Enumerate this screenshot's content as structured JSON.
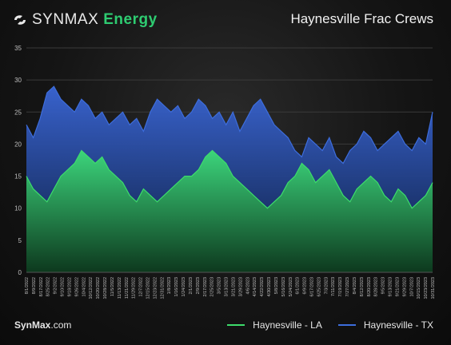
{
  "header": {
    "logo_text": "SYNMAX",
    "logo_brand": "Energy",
    "title": "Haynesville Frac Crews"
  },
  "footer": {
    "site_bold": "SynMax",
    "site_rest": ".com"
  },
  "colors": {
    "la": "#3ddc6b",
    "tx": "#3d6ddc",
    "grid": "#3a3a3a",
    "axis_text": "#bfbfbf"
  },
  "chart_data": {
    "type": "area",
    "title": "Haynesville Frac Crews",
    "ylim": [
      0,
      35
    ],
    "yticks": [
      0,
      5,
      10,
      15,
      20,
      25,
      30,
      35
    ],
    "x_tick_labels": [
      "8/1/2022",
      "8/9/2022",
      "8/17/2022",
      "8/25/2022",
      "9/2/2022",
      "9/10/2022",
      "9/18/2022",
      "9/26/2022",
      "10/4/2022",
      "10/12/2022",
      "10/20/2022",
      "10/28/2022",
      "11/5/2022",
      "11/13/2022",
      "11/21/2022",
      "11/29/2022",
      "12/7/2022",
      "12/15/2022",
      "12/23/2022",
      "12/31/2022",
      "1/8/2023",
      "1/16/2023",
      "1/24/2023",
      "2/1/2023",
      "2/9/2023",
      "2/17/2023",
      "2/25/2023",
      "3/5/2023",
      "3/13/2023",
      "3/21/2023",
      "3/29/2023",
      "4/6/2023",
      "4/14/2023",
      "4/22/2023",
      "4/30/2023",
      "5/8/2023",
      "5/16/2023",
      "5/24/2023",
      "6/1/2023",
      "6/9/2023",
      "6/17/2023",
      "6/25/2023",
      "7/3/2023",
      "7/11/2023",
      "7/19/2023",
      "7/27/2023",
      "8/4/2023",
      "8/12/2023",
      "8/20/2023",
      "8/28/2023",
      "9/5/2023",
      "9/13/2023",
      "9/21/2023",
      "9/29/2023",
      "10/7/2023",
      "10/15/2023",
      "10/23/2023",
      "10/31/2023"
    ],
    "series": [
      {
        "name": "Haynesville - LA",
        "values": [
          15,
          13,
          12,
          11,
          13,
          15,
          16,
          17,
          19,
          18,
          17,
          18,
          16,
          15,
          14,
          12,
          11,
          13,
          12,
          11,
          12,
          13,
          14,
          15,
          15,
          16,
          18,
          19,
          18,
          17,
          15,
          14,
          13,
          12,
          11,
          10,
          11,
          12,
          14,
          15,
          17,
          16,
          14,
          15,
          16,
          14,
          12,
          11,
          13,
          14,
          15,
          14,
          12,
          11,
          13,
          12,
          10,
          11,
          12,
          14
        ]
      },
      {
        "name": "Haynesville - TX",
        "values": [
          23,
          21,
          24,
          28,
          29,
          27,
          26,
          25,
          27,
          26,
          24,
          25,
          23,
          24,
          25,
          23,
          24,
          22,
          25,
          27,
          26,
          25,
          26,
          24,
          25,
          27,
          26,
          24,
          25,
          23,
          25,
          22,
          24,
          26,
          27,
          25,
          23,
          22,
          21,
          19,
          18,
          21,
          20,
          19,
          21,
          18,
          17,
          19,
          20,
          22,
          21,
          19,
          20,
          21,
          22,
          20,
          19,
          21,
          20,
          25
        ]
      }
    ],
    "legend": [
      "Haynesville - LA",
      "Haynesville - TX"
    ],
    "legend_position": "bottom-right",
    "grid": true
  }
}
